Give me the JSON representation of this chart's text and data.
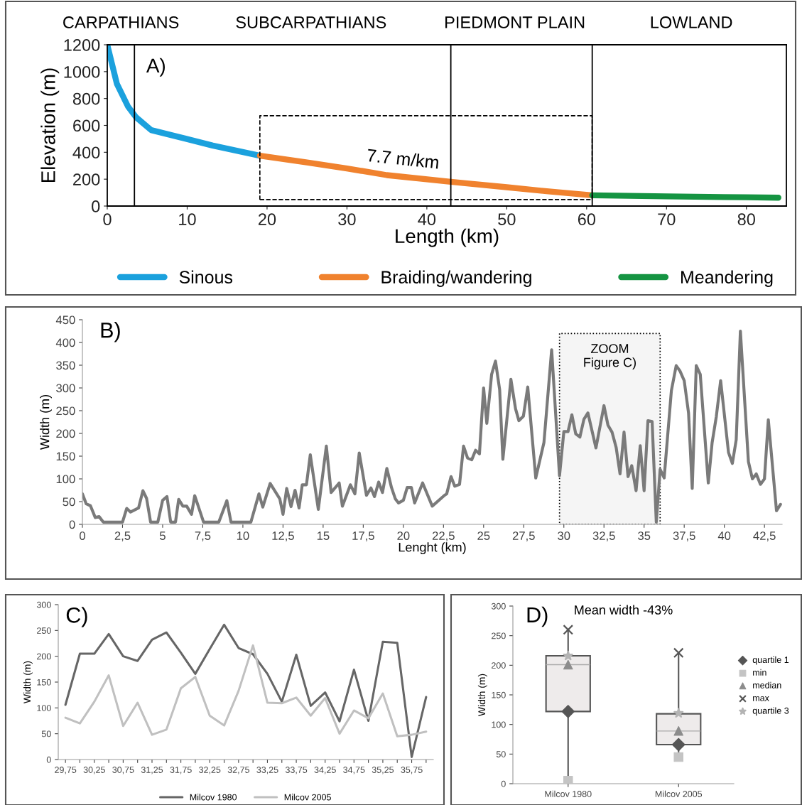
{
  "chart_data": [
    {
      "type": "line",
      "xlabel": "Length (km)",
      "ylabel": "Elevation (m)",
      "xlim": [
        0,
        85
      ],
      "xticks": [
        0,
        10,
        20,
        30,
        40,
        50,
        60,
        70,
        80
      ],
      "ylim": [
        0,
        1200
      ],
      "yticks": [
        0,
        200,
        400,
        600,
        800,
        1000,
        1200
      ],
      "legend": "bottom",
      "line_style": "solid",
      "series": [
        {
          "name": "Sinous",
          "color": "#1ba1dd",
          "x": [
            0,
            1.2,
            2.6,
            3.6,
            5.5,
            9.7,
            13.2,
            19.1
          ],
          "values": [
            1200,
            910,
            740,
            661,
            565,
            503,
            450,
            375
          ]
        },
        {
          "name": "Braiding/wandering",
          "color": "#f0822e",
          "x": [
            19.1,
            25,
            30,
            35,
            43,
            50,
            55,
            60.7
          ],
          "values": [
            375,
            325,
            280,
            230,
            180,
            140,
            110,
            80
          ]
        },
        {
          "name": "Meandering",
          "color": "#159442",
          "x": [
            60.7,
            70,
            80,
            84
          ],
          "values": [
            80,
            72,
            65,
            62
          ]
        }
      ],
      "ref_lines": [
        {
          "axis": "x",
          "value": 3.4,
          "color": "#000000"
        },
        {
          "axis": "x",
          "value": 43,
          "color": "#000000"
        },
        {
          "axis": "x",
          "value": 60.7,
          "color": "#000000"
        }
      ],
      "annotations": [
        "A)",
        "CARPATHIANS",
        "SUBCARPATHIANS",
        "PIEDMONT PLAIN",
        "LOWLAND",
        {
          "text": "7.7 m/km",
          "x": 37,
          "y": 250
        }
      ]
    },
    {
      "type": "line",
      "xlabel": "Lenght (km)",
      "ylabel": "Width (m)",
      "xlim": [
        0,
        43.6
      ],
      "xticks": [
        0,
        {
          "value": 2.5,
          "label": "2,5"
        },
        5,
        {
          "value": 7.5,
          "label": "7,5"
        },
        10,
        {
          "value": 12.5,
          "label": "12,5"
        },
        15,
        {
          "value": 17.5,
          "label": "17,5"
        },
        20,
        {
          "value": 22.5,
          "label": "22,5"
        },
        25,
        {
          "value": 27.5,
          "label": "27,5"
        },
        30,
        {
          "value": 32.5,
          "label": "32,5"
        },
        35,
        {
          "value": 37.5,
          "label": "37,5"
        },
        40,
        {
          "value": 42.5,
          "label": "42,5"
        }
      ],
      "ylim": [
        0,
        450
      ],
      "yticks": [
        0,
        50,
        100,
        150,
        200,
        250,
        300,
        350,
        400,
        450
      ],
      "line_style": "solid",
      "series": [
        {
          "color": "#7a7a7a",
          "x": [
            0,
            0.24,
            0.5,
            0.8,
            1.04,
            1.3,
            2.5,
            2.76,
            3.0,
            3.5,
            3.77,
            4.0,
            4.25,
            4.7,
            5.0,
            5.27,
            5.5,
            5.8,
            6.0,
            6.26,
            6.5,
            6.8,
            7.0,
            7.55,
            8.5,
            9.0,
            9.26,
            10.5,
            11.0,
            11.24,
            11.7,
            12.3,
            12.5,
            12.73,
            13.0,
            13.25,
            13.5,
            13.7,
            13.96,
            14.2,
            14.7,
            15.2,
            15.5,
            16.0,
            16.2,
            16.7,
            16.98,
            17.25,
            17.7,
            17.98,
            18.2,
            18.46,
            18.7,
            18.97,
            19.26,
            19.5,
            19.7,
            20.0,
            20.24,
            20.5,
            20.7,
            21.2,
            21.8,
            22.57,
            22.7,
            22.97,
            23.2,
            23.5,
            23.75,
            24.0,
            24.26,
            24.5,
            24.74,
            25.0,
            25.2,
            25.5,
            25.74,
            26.0,
            26.2,
            26.7,
            26.99,
            27.2,
            27.48,
            27.75,
            28.25,
            28.76,
            29.24,
            29.73,
            30.0,
            30.26,
            30.5,
            30.74,
            31.0,
            31.25,
            31.5,
            32.0,
            32.5,
            32.75,
            33.0,
            33.26,
            33.5,
            33.75,
            34.0,
            34.23,
            34.5,
            34.76,
            35.0,
            35.24,
            35.5,
            35.76,
            36.0,
            36.25,
            36.7,
            37.0,
            37.24,
            37.5,
            37.77,
            38.0,
            38.25,
            38.5,
            39.0,
            39.24,
            39.5,
            39.77,
            40.26,
            40.5,
            40.74,
            41.0,
            41.5,
            41.75,
            41.99,
            42.25,
            42.5,
            42.74,
            43.25,
            43.5
          ],
          "values": [
            67,
            45,
            41,
            15,
            17,
            5,
            5,
            35,
            27,
            36,
            74,
            57,
            5,
            5,
            53,
            61,
            5,
            5,
            55,
            40,
            40,
            22,
            63,
            5,
            5,
            52,
            5,
            5,
            67,
            38,
            90,
            56,
            22,
            79,
            39,
            75,
            36,
            87,
            87,
            153,
            33,
            172,
            70,
            91,
            40,
            87,
            67,
            157,
            64,
            80,
            61,
            93,
            70,
            123,
            81,
            56,
            47,
            53,
            81,
            81,
            47,
            91,
            40,
            64,
            67,
            105,
            84,
            88,
            172,
            146,
            142,
            163,
            155,
            300,
            222,
            330,
            359,
            296,
            143,
            319,
            254,
            228,
            238,
            302,
            102,
            180,
            384,
            107,
            204,
            204,
            241,
            199,
            192,
            231,
            245,
            168,
            261,
            218,
            203,
            169,
            111,
            203,
            105,
            129,
            74,
            173,
            74,
            228,
            226,
            5,
            121,
            102,
            294,
            349,
            337,
            316,
            245,
            79,
            349,
            330,
            91,
            180,
            237,
            316,
            158,
            134,
            186,
            425,
            138,
            100,
            111,
            88,
            100,
            230,
            30,
            44
          ]
        }
      ],
      "bands": [
        {
          "axis": "x",
          "from": 29.73,
          "to": 36.0,
          "label": "ZOOM\nFigure C)",
          "color": "#f5f5f5"
        }
      ],
      "annotations": [
        "B)"
      ]
    },
    {
      "type": "line",
      "ylabel": "Width (m)",
      "ylim": [
        0,
        300
      ],
      "yticks": [
        0,
        50,
        100,
        150,
        200,
        250,
        300
      ],
      "legend": "bottom",
      "line_style": "solid",
      "categories": [
        "29,75",
        null,
        "30,25",
        null,
        "30,75",
        null,
        "31,25",
        null,
        "31,75",
        null,
        "32,25",
        null,
        "32,75",
        null,
        "33,25",
        null,
        "33,75",
        null,
        "34,25",
        null,
        "34,75",
        null,
        "35,25",
        null,
        "35,75",
        null
      ],
      "series": [
        {
          "name": "Milcov 1980",
          "color": "#666666",
          "values": [
            106,
            205,
            205,
            243,
            200,
            191,
            232,
            246,
            207,
            166,
            214,
            261,
            216,
            204,
            166,
            112,
            203,
            104,
            130,
            74,
            174,
            75,
            228,
            226,
            5,
            121
          ]
        },
        {
          "name": "Milcov 2005",
          "color": "#c0c0c0",
          "values": [
            81,
            70,
            112,
            163,
            65,
            110,
            48,
            58,
            138,
            160,
            85,
            66,
            133,
            221,
            110,
            109,
            120,
            85,
            119,
            50,
            95,
            80,
            128,
            45,
            48,
            54
          ]
        }
      ],
      "annotations": [
        "C)"
      ]
    },
    {
      "type": "box",
      "title": "Mean width -43%",
      "ylabel": "Width (m)",
      "ylim": [
        0,
        300
      ],
      "yticks": [
        0,
        50,
        100,
        150,
        200,
        250,
        300
      ],
      "legend": "right",
      "categories": [
        "Milcov 1980",
        "Milcov 2005"
      ],
      "boxes": [
        {
          "low": 5,
          "q1": 122,
          "median": 201,
          "q3": 216,
          "high": 260
        },
        {
          "low": 45,
          "q1": 66,
          "median": 89,
          "q3": 118,
          "high": 221
        }
      ],
      "series": [
        {
          "type": "scatter",
          "name": "quartile 1",
          "color": "#555555",
          "marker": "diamond",
          "x": [
            "Milcov 1980",
            "Milcov 2005"
          ],
          "values": [
            122,
            66
          ]
        },
        {
          "type": "scatter",
          "name": "min",
          "color": "#c4c4c4",
          "marker": "square",
          "x": [
            "Milcov 1980",
            "Milcov 2005"
          ],
          "values": [
            5,
            45
          ]
        },
        {
          "type": "scatter",
          "name": "median",
          "color": "#8c8c8c",
          "marker": "triangle",
          "x": [
            "Milcov 1980",
            "Milcov 2005"
          ],
          "values": [
            201,
            89
          ]
        },
        {
          "type": "scatter",
          "name": "max",
          "color": "#555555",
          "marker": "cross",
          "x": [
            "Milcov 1980",
            "Milcov 2005"
          ],
          "values": [
            260,
            221
          ]
        },
        {
          "type": "scatter",
          "name": "quartile 3",
          "color": "#b4b4b4",
          "marker": "star",
          "x": [
            "Milcov 1980",
            "Milcov 2005"
          ],
          "values": [
            216,
            119
          ]
        }
      ],
      "annotations": [
        "D)"
      ]
    }
  ]
}
